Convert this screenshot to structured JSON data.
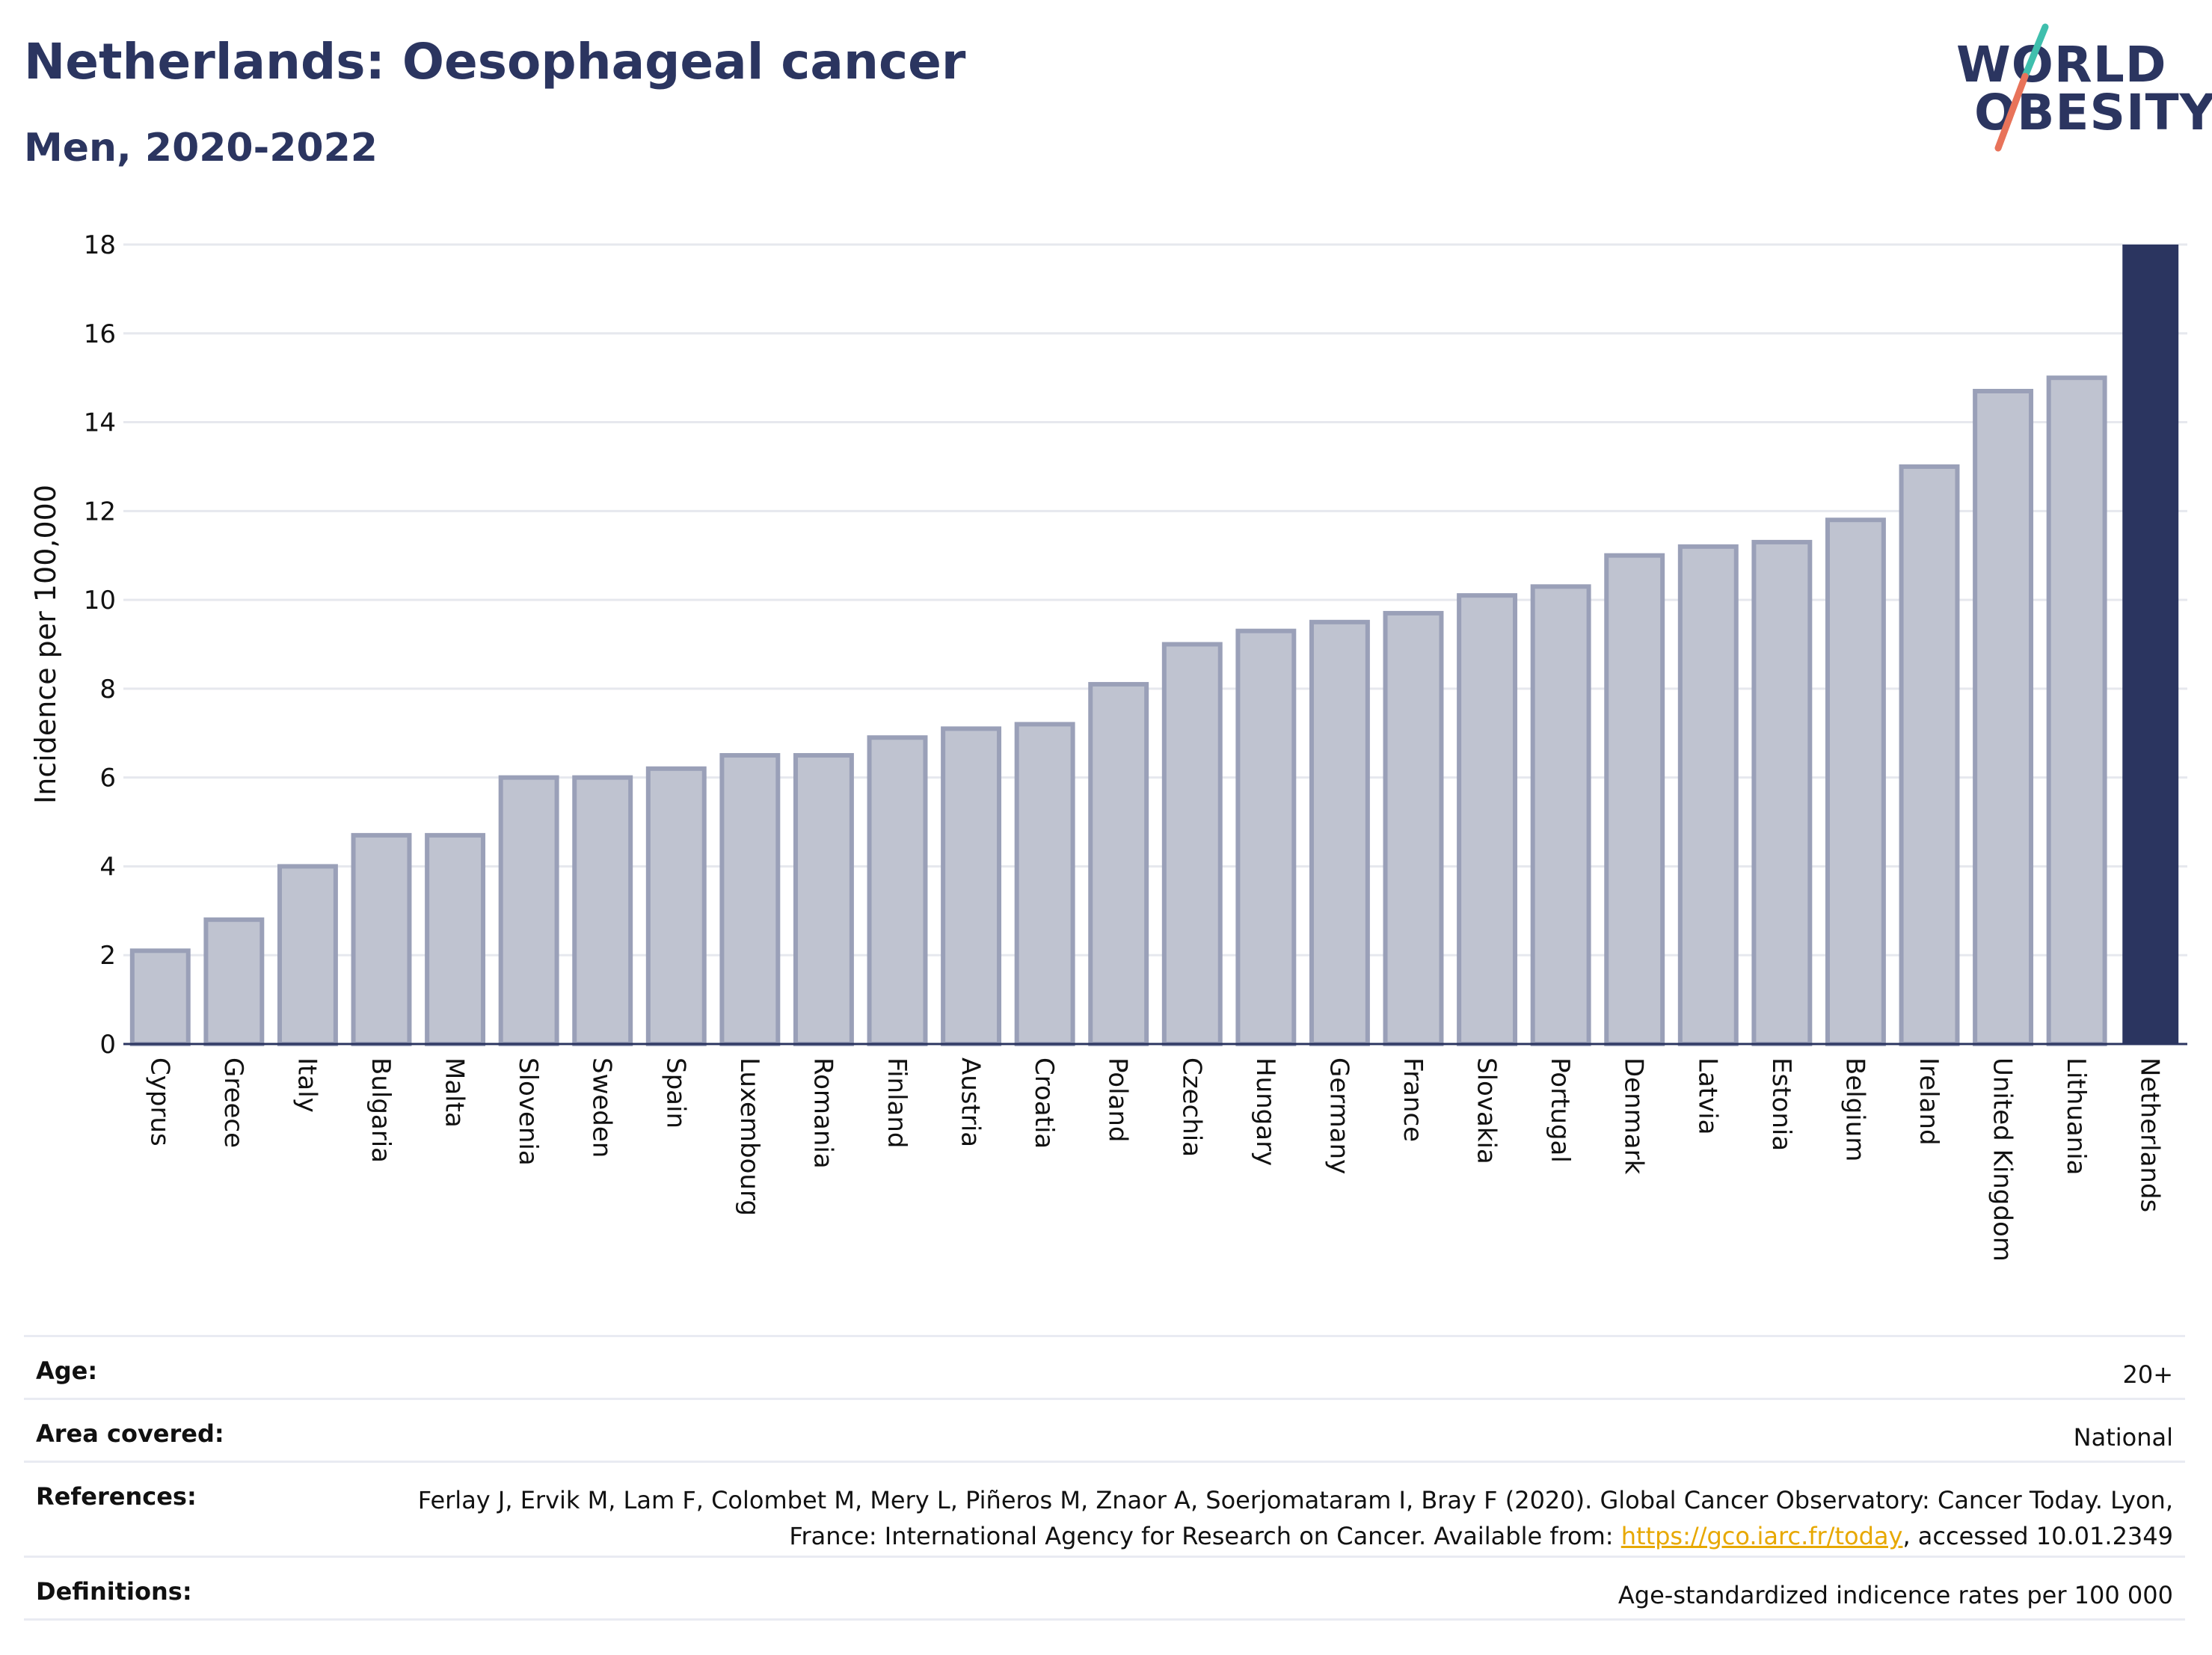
{
  "header": {
    "title": "Netherlands: Oesophageal cancer",
    "subtitle": "Men, 2020-2022"
  },
  "logo": {
    "line1": "WORLD",
    "line2": "OBESITY",
    "colors": {
      "text": "#2b3560",
      "slash_teal": "#3fbfad",
      "slash_coral": "#e8735a"
    }
  },
  "chart_data": {
    "type": "bar",
    "ylabel": "Incidence per 100,000",
    "xlabel": "",
    "ylim": [
      0,
      18
    ],
    "yticks": [
      0,
      2,
      4,
      6,
      8,
      10,
      12,
      14,
      16,
      18
    ],
    "grid": true,
    "categories": [
      "Cyprus",
      "Greece",
      "Italy",
      "Bulgaria",
      "Malta",
      "Slovenia",
      "Sweden",
      "Spain",
      "Luxembourg",
      "Romania",
      "Finland",
      "Austria",
      "Croatia",
      "Poland",
      "Czechia",
      "Hungary",
      "Germany",
      "France",
      "Slovakia",
      "Portugal",
      "Denmark",
      "Latvia",
      "Estonia",
      "Belgium",
      "Ireland",
      "United Kingdom",
      "Lithuania",
      "Netherlands"
    ],
    "values": [
      2.1,
      2.8,
      4.0,
      4.7,
      4.7,
      6.0,
      6.0,
      6.2,
      6.5,
      6.5,
      6.9,
      7.1,
      7.2,
      8.1,
      9.0,
      9.3,
      9.5,
      9.7,
      10.1,
      10.3,
      11.0,
      11.2,
      11.3,
      11.8,
      13.0,
      14.7,
      15.0,
      18.0
    ],
    "highlight": "Netherlands",
    "colors": {
      "bar": "#bfc3d0",
      "bar_edge": "#9aa0b8",
      "highlight": "#2b3560",
      "grid": "#e6e8ee",
      "axis": "#2b3560"
    }
  },
  "meta": {
    "age_label": "Age:",
    "age_value": "20+",
    "area_label": "Area covered:",
    "area_value": "National",
    "references_label": "References:",
    "references_text_1": "Ferlay J, Ervik M, Lam F, Colombet M, Mery L, Piñeros M, Znaor A, Soerjomataram I, Bray F (2020). Global Cancer Observatory: Cancer Today. Lyon, France: International Agency for Research on Cancer. Available from: ",
    "references_link": "https://gco.iarc.fr/today",
    "references_text_2": ", accessed 10.01.2349",
    "definitions_label": "Definitions:",
    "definitions_value": "Age-standardized indicence rates per 100 000"
  }
}
